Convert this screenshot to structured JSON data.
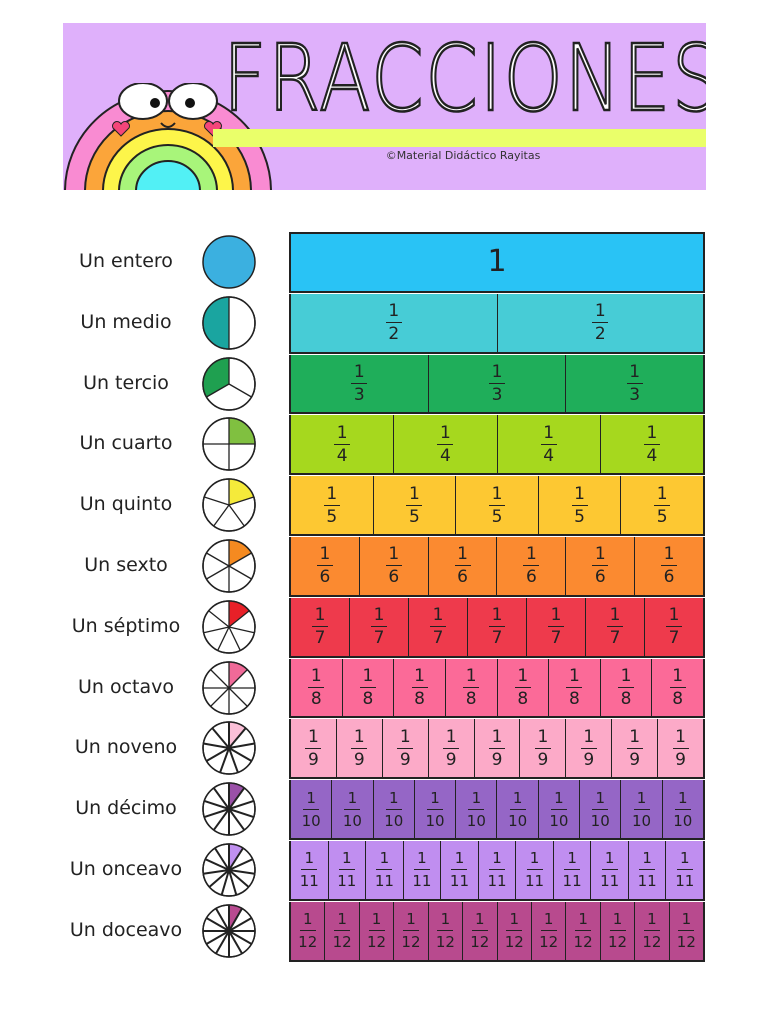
{
  "header": {
    "title": "FRACCIONES",
    "copyright": "©Material Didáctico Rayitas",
    "background": "#dfb0fb",
    "stripe": "#eaff6a"
  },
  "rows": [
    {
      "label": "Un entero",
      "denominator": 1,
      "bar_color": "#29c3f5",
      "pie_color": "#3bb0e0"
    },
    {
      "label": "Un medio",
      "denominator": 2,
      "bar_color": "#47ccd6",
      "pie_color": "#1aa5a0"
    },
    {
      "label": "Un tercio",
      "denominator": 3,
      "bar_color": "#1fae5a",
      "pie_color": "#1fa050"
    },
    {
      "label": "Un cuarto",
      "denominator": 4,
      "bar_color": "#a6d81e",
      "pie_color": "#80c040"
    },
    {
      "label": "Un quinto",
      "denominator": 5,
      "bar_color": "#fdc832",
      "pie_color": "#f5ea3a"
    },
    {
      "label": "Un sexto",
      "denominator": 6,
      "bar_color": "#fb8a30",
      "pie_color": "#f58a20"
    },
    {
      "label": "Un séptimo",
      "denominator": 7,
      "bar_color": "#ee3a4c",
      "pie_color": "#e82028"
    },
    {
      "label": "Un octavo",
      "denominator": 8,
      "bar_color": "#fb6a98",
      "pie_color": "#f06a98"
    },
    {
      "label": "Un noveno",
      "denominator": 9,
      "bar_color": "#fcaac8",
      "pie_color": "#fbc0d8"
    },
    {
      "label": "Un décimo",
      "denominator": 10,
      "bar_color": "#9566c6",
      "pie_color": "#9a50a8"
    },
    {
      "label": "Un onceavo",
      "denominator": 11,
      "bar_color": "#c08ef0",
      "pie_color": "#c090f0"
    },
    {
      "label": "Un doceavo",
      "denominator": 12,
      "bar_color": "#b84a8e",
      "pie_color": "#b84a90"
    }
  ]
}
